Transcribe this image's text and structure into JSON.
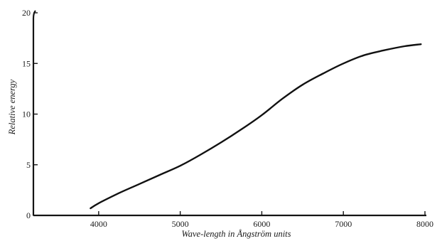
{
  "chart_data": {
    "type": "line",
    "title": "",
    "xlabel": "Wave-length in Ångström units",
    "ylabel": "Relative energy",
    "xlim": [
      3200,
      8000
    ],
    "ylim": [
      0,
      20
    ],
    "x_ticks": [
      {
        "value": 4000,
        "label": "4000"
      },
      {
        "value": 5000,
        "label": "5000"
      },
      {
        "value": 6000,
        "label": "6000"
      },
      {
        "value": 7000,
        "label": "7000"
      },
      {
        "value": 8000,
        "label": "8000"
      }
    ],
    "y_ticks": [
      {
        "value": 0,
        "label": "0"
      },
      {
        "value": 5,
        "label": "5"
      },
      {
        "value": 10,
        "label": "10"
      },
      {
        "value": 15,
        "label": "15"
      },
      {
        "value": 20,
        "label": "20"
      }
    ],
    "grid": false,
    "series": [
      {
        "x": [
          3900,
          4000,
          4250,
          4500,
          4750,
          5000,
          5250,
          5500,
          5750,
          6000,
          6250,
          6500,
          6750,
          7000,
          7250,
          7500,
          7750,
          7950
        ],
        "y": [
          0.7,
          1.2,
          2.2,
          3.1,
          4.0,
          4.9,
          6.0,
          7.2,
          8.5,
          9.9,
          11.5,
          12.9,
          14.0,
          15.0,
          15.8,
          16.3,
          16.7,
          16.9
        ]
      }
    ]
  }
}
